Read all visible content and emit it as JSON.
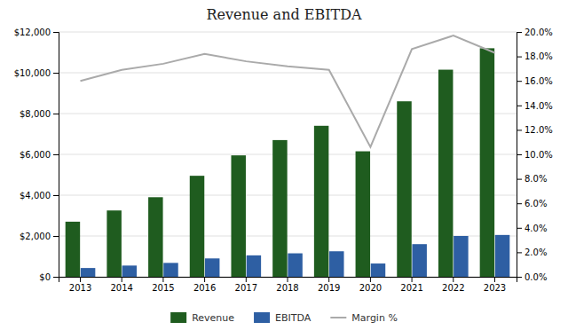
{
  "chart_data": {
    "type": "bar",
    "title": "Revenue and EBITDA",
    "categories": [
      "2013",
      "2014",
      "2015",
      "2016",
      "2017",
      "2018",
      "2019",
      "2020",
      "2021",
      "2022",
      "2023"
    ],
    "series": [
      {
        "name": "Revenue",
        "type": "bar",
        "color": "#1f5c1f",
        "values": [
          2700,
          3250,
          3900,
          4950,
          5950,
          6700,
          7400,
          6150,
          8600,
          10150,
          11200
        ]
      },
      {
        "name": "EBITDA",
        "type": "bar",
        "color": "#2e5fa3",
        "values": [
          430,
          550,
          680,
          900,
          1050,
          1150,
          1250,
          650,
          1600,
          2000,
          2050
        ]
      },
      {
        "name": "Margin %",
        "type": "line",
        "axis": "y2",
        "color": "#aaaaaa",
        "values": [
          0.16,
          0.169,
          0.174,
          0.182,
          0.176,
          0.172,
          0.169,
          0.106,
          0.186,
          0.197,
          0.183
        ]
      }
    ],
    "ylim": [
      0,
      12000
    ],
    "yticks": [
      {
        "value": 0,
        "label": "$0"
      },
      {
        "value": 2000,
        "label": "$2,000"
      },
      {
        "value": 4000,
        "label": "$4,000"
      },
      {
        "value": 6000,
        "label": "$6,000"
      },
      {
        "value": 8000,
        "label": "$8,000"
      },
      {
        "value": 10000,
        "label": "$10,000"
      },
      {
        "value": 12000,
        "label": "$12,000"
      }
    ],
    "y2lim": [
      0,
      0.2
    ],
    "y2ticks": [
      {
        "value": 0.0,
        "label": "0.0%"
      },
      {
        "value": 0.02,
        "label": "2.0%"
      },
      {
        "value": 0.04,
        "label": "4.0%"
      },
      {
        "value": 0.06,
        "label": "6.0%"
      },
      {
        "value": 0.08,
        "label": "8.0%"
      },
      {
        "value": 0.1,
        "label": "10.0%"
      },
      {
        "value": 0.12,
        "label": "12.0%"
      },
      {
        "value": 0.14,
        "label": "14.0%"
      },
      {
        "value": 0.16,
        "label": "16.0%"
      },
      {
        "value": 0.18,
        "label": "18.0%"
      },
      {
        "value": 0.2,
        "label": "20.0%"
      }
    ],
    "grid": true,
    "legend": "bottom"
  }
}
